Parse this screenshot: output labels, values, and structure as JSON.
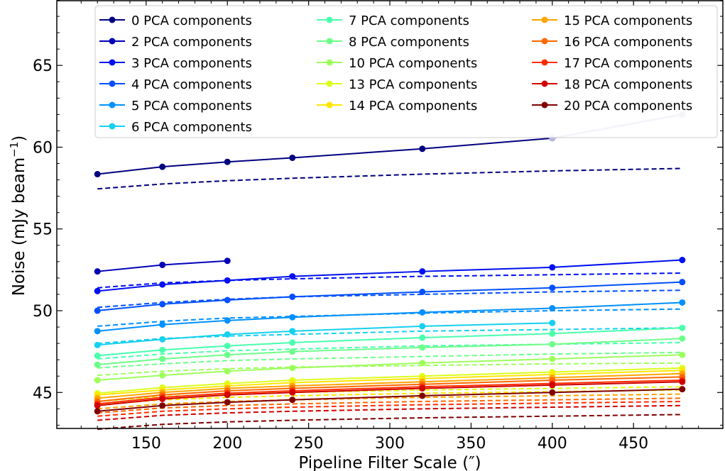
{
  "chart_data": {
    "type": "line",
    "title": "",
    "xlabel": "Pipeline Filter Scale (″)",
    "ylabel": "Noise (mJy beam",
    "ylabel_superscript": "−1",
    "ylabel_suffix": ")",
    "xlim": [
      95,
      505
    ],
    "ylim": [
      42.8,
      69.0
    ],
    "xticks": [
      150,
      200,
      250,
      300,
      350,
      400,
      450
    ],
    "yticks": [
      45,
      50,
      55,
      60,
      65
    ],
    "x": [
      120,
      160,
      200,
      240,
      320,
      400,
      480
    ],
    "series": [
      {
        "name": "0 PCA components",
        "color": "#000080",
        "values": [
          58.35,
          58.8,
          59.1,
          59.35,
          59.9,
          60.55,
          62.0
        ],
        "dashed": [
          57.45,
          57.75,
          57.95,
          58.1,
          58.35,
          58.55,
          58.7
        ]
      },
      {
        "name": "2 PCA components",
        "color": "#0000b8",
        "values": [
          52.4,
          52.8,
          53.05,
          null,
          null,
          null,
          null
        ],
        "dashed": []
      },
      {
        "name": "3 PCA components",
        "color": "#0010f0",
        "values": [
          51.2,
          51.6,
          51.85,
          52.1,
          52.4,
          52.65,
          53.1
        ],
        "dashed": [
          51.4,
          51.7,
          51.85,
          51.95,
          52.1,
          52.2,
          52.3
        ]
      },
      {
        "name": "4 PCA components",
        "color": "#0050ff",
        "values": [
          50.0,
          50.4,
          50.65,
          50.85,
          51.15,
          51.4,
          51.75
        ],
        "dashed": [
          50.2,
          50.5,
          50.7,
          50.85,
          51.0,
          51.15,
          51.25
        ]
      },
      {
        "name": "5 PCA components",
        "color": "#0090ff",
        "values": [
          48.75,
          49.15,
          49.4,
          49.6,
          49.9,
          50.15,
          50.5
        ],
        "dashed": [
          49.05,
          49.35,
          49.55,
          49.65,
          49.85,
          50.0,
          50.1
        ]
      },
      {
        "name": "6 PCA components",
        "color": "#15d0f0",
        "values": [
          47.9,
          48.25,
          48.55,
          48.75,
          49.05,
          49.25,
          null
        ],
        "dashed": [
          48.0,
          48.3,
          48.45,
          48.55,
          48.75,
          48.85,
          48.95
        ]
      },
      {
        "name": "7 PCA components",
        "color": "#49ffad",
        "values": [
          47.25,
          47.6,
          47.85,
          48.05,
          48.35,
          48.6,
          48.95
        ],
        "dashed": [
          47.05,
          47.35,
          47.55,
          47.65,
          47.85,
          47.95,
          48.05
        ]
      },
      {
        "name": "8 PCA components",
        "color": "#6dff8a",
        "values": [
          46.7,
          47.05,
          47.3,
          47.5,
          47.75,
          47.95,
          48.3
        ],
        "dashed": [
          46.5,
          46.75,
          46.95,
          47.05,
          47.2,
          47.35,
          47.45
        ]
      },
      {
        "name": "10 PCA components",
        "color": "#9dff5a",
        "values": [
          45.75,
          46.05,
          46.3,
          46.5,
          46.8,
          47.05,
          47.3
        ],
        "dashed": [
          46.05,
          46.3,
          46.45,
          46.55,
          46.65,
          46.75,
          46.8
        ]
      },
      {
        "name": "13 PCA components",
        "color": "#dcff1a",
        "values": [
          44.95,
          45.3,
          45.55,
          45.75,
          46.0,
          46.25,
          46.5
        ],
        "dashed": [
          44.45,
          44.75,
          44.9,
          45.0,
          45.15,
          45.25,
          45.35
        ]
      },
      {
        "name": "14 PCA components",
        "color": "#ffe600",
        "values": [
          44.85,
          45.15,
          45.4,
          45.6,
          45.85,
          46.1,
          46.35
        ],
        "dashed": [
          44.25,
          44.55,
          44.7,
          44.8,
          44.95,
          45.05,
          45.15
        ]
      },
      {
        "name": "15 PCA components",
        "color": "#ffa400",
        "values": [
          44.65,
          45.0,
          45.25,
          45.4,
          45.65,
          45.9,
          46.15
        ],
        "dashed": [
          44.0,
          44.3,
          44.45,
          44.55,
          44.7,
          44.8,
          44.9
        ]
      },
      {
        "name": "16 PCA components",
        "color": "#ff6800",
        "values": [
          44.45,
          44.85,
          45.1,
          45.25,
          45.5,
          45.75,
          45.95
        ],
        "dashed": [
          43.75,
          44.05,
          44.2,
          44.3,
          44.45,
          44.55,
          44.65
        ]
      },
      {
        "name": "17 PCA components",
        "color": "#ff2c00",
        "values": [
          44.3,
          44.7,
          44.95,
          45.1,
          45.35,
          45.55,
          45.75
        ],
        "dashed": [
          43.55,
          43.85,
          44.0,
          44.1,
          44.25,
          44.35,
          44.45
        ]
      },
      {
        "name": "18 PCA components",
        "color": "#d00000",
        "values": [
          44.2,
          44.6,
          44.85,
          45.0,
          45.25,
          45.45,
          45.65
        ],
        "dashed": [
          43.3,
          43.6,
          43.75,
          43.85,
          44.0,
          44.1,
          44.2
        ]
      },
      {
        "name": "20 PCA components",
        "color": "#800000",
        "values": [
          43.85,
          44.2,
          44.4,
          44.55,
          44.8,
          45.0,
          45.2
        ],
        "dashed": [
          42.75,
          43.05,
          43.2,
          43.3,
          43.45,
          43.55,
          43.65
        ]
      }
    ],
    "highlight_segment": {
      "from_x": 400,
      "to_x": 480,
      "series": "0 PCA components",
      "color": "#bdb4de"
    },
    "legend": {
      "placement": "top",
      "columns": 3
    }
  }
}
